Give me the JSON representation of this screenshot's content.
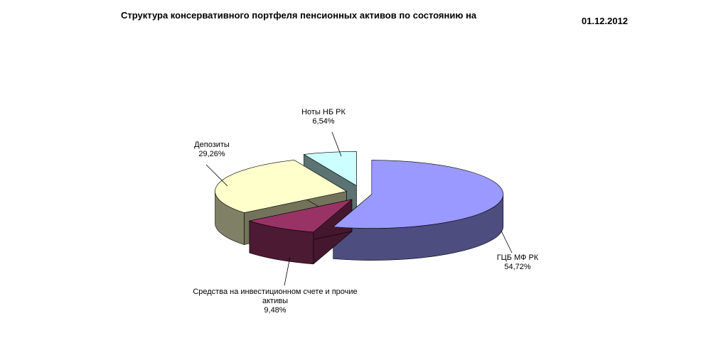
{
  "chart_data": {
    "type": "pie",
    "title": "Структура консервативного портфеля пенсионных активов по состоянию на",
    "date": "01.12.2012",
    "categories": [
      "ГЦБ МФ РК",
      "Средства на инвестиционном счете и прочие активы",
      "Депозиты",
      "Ноты НБ РК"
    ],
    "values": [
      54.72,
      9.48,
      29.26,
      6.54
    ],
    "value_labels": [
      "54,72%",
      "9,48%",
      "29,26%",
      "6,54%"
    ],
    "colors": [
      "#9999ff",
      "#993366",
      "#ffffcc",
      "#ccffff"
    ]
  }
}
